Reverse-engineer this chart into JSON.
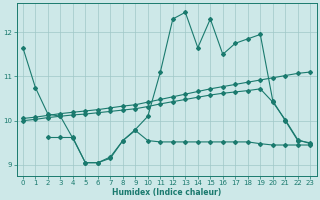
{
  "xlabel": "Humidex (Indice chaleur)",
  "bg_color": "#cde8e8",
  "grid_color": "#a0c8c8",
  "line_color": "#1a7a6e",
  "xlim": [
    -0.5,
    23.5
  ],
  "ylim": [
    8.75,
    12.65
  ],
  "yticks": [
    9,
    10,
    11,
    12
  ],
  "xticks": [
    0,
    1,
    2,
    3,
    4,
    5,
    6,
    7,
    8,
    9,
    10,
    11,
    12,
    13,
    14,
    15,
    16,
    17,
    18,
    19,
    20,
    21,
    22,
    23
  ],
  "line1_x": [
    0,
    1,
    2,
    3,
    4,
    5,
    6,
    7,
    8,
    9,
    10,
    11,
    12,
    13,
    14,
    15,
    16,
    17,
    18,
    19,
    20,
    21,
    22,
    23
  ],
  "line1_y": [
    11.65,
    10.75,
    10.15,
    10.1,
    9.6,
    9.05,
    9.05,
    9.15,
    9.55,
    9.8,
    10.1,
    11.1,
    12.3,
    12.45,
    11.65,
    12.3,
    11.5,
    11.75,
    11.85,
    11.95,
    10.45,
    10.0,
    9.55,
    9.5
  ],
  "line2_x": [
    0,
    1,
    2,
    3,
    4,
    5,
    6,
    7,
    8,
    9,
    10,
    11,
    12,
    13,
    14,
    15,
    16,
    17,
    18,
    19,
    20,
    21,
    22,
    23
  ],
  "line2_y": [
    10.05,
    10.08,
    10.12,
    10.16,
    10.19,
    10.22,
    10.25,
    10.29,
    10.33,
    10.36,
    10.42,
    10.48,
    10.54,
    10.6,
    10.66,
    10.72,
    10.77,
    10.82,
    10.87,
    10.92,
    10.97,
    11.02,
    11.07,
    11.1
  ],
  "line3_x": [
    0,
    1,
    2,
    3,
    4,
    5,
    6,
    7,
    8,
    9,
    10,
    11,
    12,
    13,
    14,
    15,
    16,
    17,
    18,
    19,
    20,
    21,
    22,
    23
  ],
  "line3_y": [
    10.0,
    10.03,
    10.07,
    10.1,
    10.13,
    10.15,
    10.18,
    10.21,
    10.24,
    10.27,
    10.32,
    10.38,
    10.43,
    10.48,
    10.53,
    10.58,
    10.62,
    10.65,
    10.68,
    10.72,
    10.42,
    10.02,
    9.57,
    9.48
  ],
  "line4_x": [
    2,
    3,
    4,
    5,
    6,
    7,
    8,
    9,
    10,
    11,
    12,
    13,
    14,
    15,
    16,
    17,
    18,
    19,
    20,
    21,
    22,
    23
  ],
  "line4_y": [
    9.62,
    9.62,
    9.62,
    9.05,
    9.05,
    9.18,
    9.55,
    9.78,
    9.55,
    9.52,
    9.52,
    9.52,
    9.52,
    9.52,
    9.52,
    9.52,
    9.52,
    9.48,
    9.45,
    9.45,
    9.45,
    9.45
  ]
}
